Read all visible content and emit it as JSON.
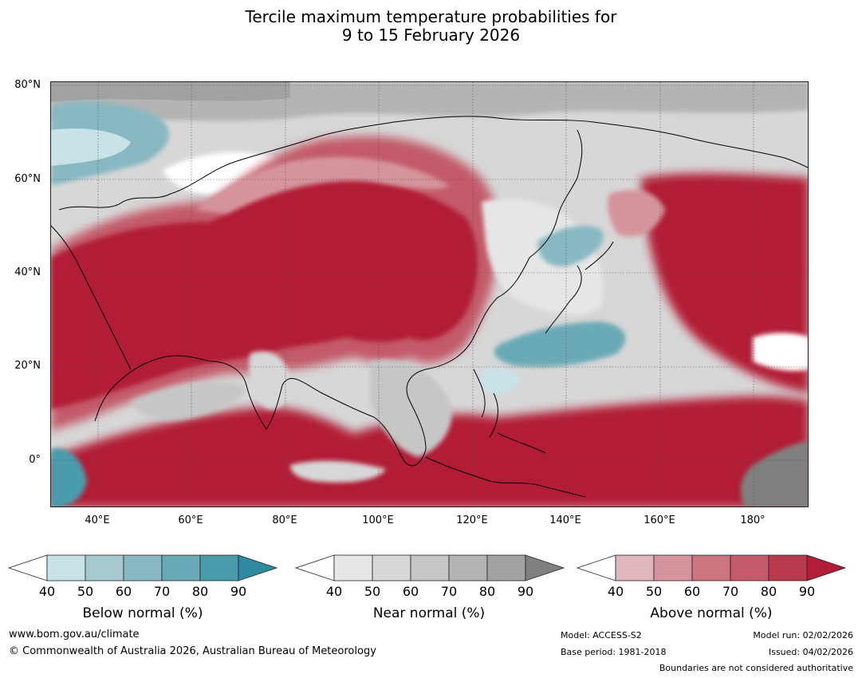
{
  "title_line1": "Tercile maximum temperature probabilities for",
  "title_line2": "9 to 15 February 2026",
  "lat_labels": [
    "80°N",
    "60°N",
    "40°N",
    "20°N",
    "0°"
  ],
  "lon_labels": [
    "40°E",
    "60°E",
    "80°E",
    "100°E",
    "120°E",
    "140°E",
    "160°E",
    "180°"
  ],
  "colorbars": [
    {
      "label": "Below normal (%)",
      "colors": [
        "#c8e2e8",
        "#a6c9d0",
        "#88b8c2",
        "#6aaab6",
        "#4a9cac",
        "#2e8a9e"
      ]
    },
    {
      "label": "Near normal (%)",
      "colors": [
        "#e6e6e6",
        "#d7d7d7",
        "#c6c6c6",
        "#b4b4b4",
        "#a2a2a2",
        "#808080"
      ]
    },
    {
      "label": "Above normal (%)",
      "colors": [
        "#e0b6bd",
        "#d5949d",
        "#cb7580",
        "#c35a69",
        "#b83a4d",
        "#b21c36"
      ]
    }
  ],
  "ticks": [
    "40",
    "50",
    "60",
    "70",
    "80",
    "90"
  ],
  "footer": {
    "website": "www.bom.gov.au/climate",
    "copyright": "© Commonwealth of Australia 2026, Australian Bureau of Meteorology",
    "model": "Model: ACCESS-S2",
    "base_period": "Base period: 1981-2018",
    "model_run": "Model run: 02/02/2026",
    "issued": "Issued: 04/02/2026",
    "disclaimer": "Boundaries are not considered authoritative"
  }
}
